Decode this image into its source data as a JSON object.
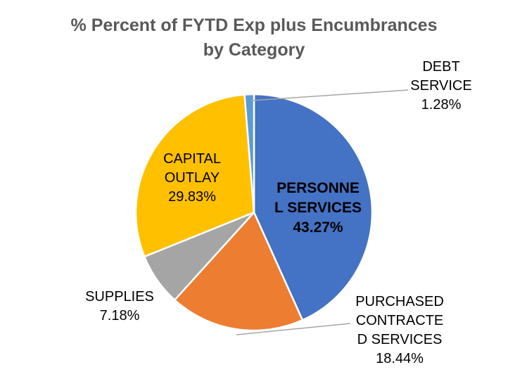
{
  "chart_data": {
    "type": "pie",
    "title": "% Percent of FYTD Exp plus Encumbrances by Category",
    "title_lines": [
      "% Percent of FYTD Exp plus Encumbrances",
      "by Category"
    ],
    "legend": "none",
    "slices": [
      {
        "category": "PERSONNEL SERVICES",
        "value": 43.27,
        "value_label": "43.27%",
        "label_lines": [
          "PERSONNE",
          "L SERVICES"
        ],
        "color": "#4472C4"
      },
      {
        "category": "PURCHASED CONTRACTED SERVICES",
        "value": 18.44,
        "value_label": "18.44%",
        "label_lines": [
          "PURCHASED",
          "CONTRACTE",
          "D SERVICES"
        ],
        "color": "#ED7D31"
      },
      {
        "category": "SUPPLIES",
        "value": 7.18,
        "value_label": "7.18%",
        "label_lines": [
          "SUPPLIES"
        ],
        "color": "#A5A5A5"
      },
      {
        "category": "CAPITAL OUTLAY",
        "value": 29.83,
        "value_label": "29.83%",
        "label_lines": [
          "CAPITAL",
          "OUTLAY"
        ],
        "color": "#FFC000"
      },
      {
        "category": "DEBT SERVICE",
        "value": 1.28,
        "value_label": "1.28%",
        "label_lines": [
          "DEBT",
          "SERVICE"
        ],
        "color": "#5B9BD5"
      }
    ]
  }
}
